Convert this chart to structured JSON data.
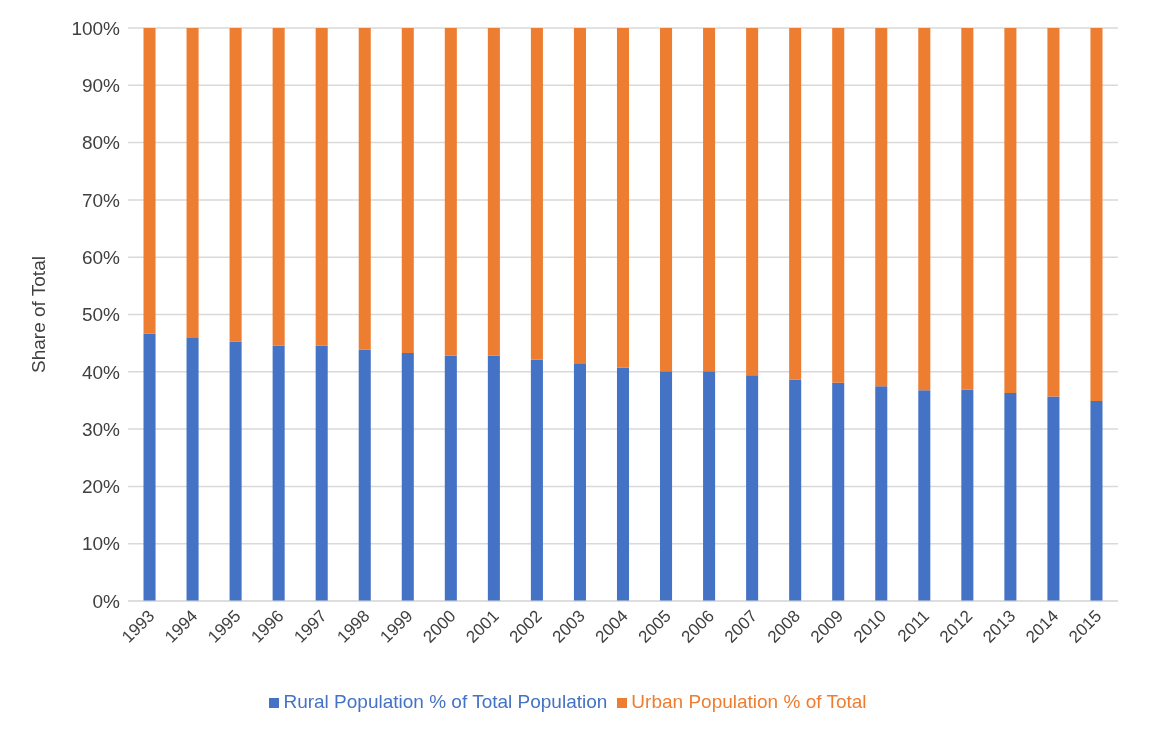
{
  "chart_data": {
    "type": "bar",
    "stacked": true,
    "ylabel": "Share of Total",
    "categories": [
      "1993",
      "1994",
      "1995",
      "1996",
      "1997",
      "1998",
      "1999",
      "2000",
      "2001",
      "2002",
      "2003",
      "2004",
      "2005",
      "2006",
      "2007",
      "2008",
      "2009",
      "2010",
      "2011",
      "2012",
      "2013",
      "2014",
      "2015"
    ],
    "series": [
      {
        "name": "Rural Population % of Total Population",
        "color": "#4472c4",
        "values": [
          46.7,
          45.9,
          45.3,
          44.6,
          44.6,
          43.9,
          43.3,
          42.8,
          42.8,
          42.1,
          41.5,
          40.7,
          40.1,
          40.1,
          39.4,
          38.6,
          38.1,
          37.5,
          36.8,
          36.9,
          36.3,
          35.7,
          34.9
        ]
      },
      {
        "name": "Urban Population % of Total",
        "color": "#ed7d31",
        "values": [
          53.3,
          54.1,
          54.7,
          55.4,
          55.4,
          56.1,
          56.7,
          57.2,
          57.2,
          57.9,
          58.5,
          59.3,
          59.9,
          59.9,
          60.6,
          61.4,
          61.9,
          62.5,
          63.2,
          63.1,
          63.7,
          64.3,
          65.1
        ]
      }
    ],
    "ylim": [
      0,
      100
    ],
    "yticks": [
      {
        "value": 0,
        "label": "0%"
      },
      {
        "value": 10,
        "label": "10%"
      },
      {
        "value": 20,
        "label": "20%"
      },
      {
        "value": 30,
        "label": "30%"
      },
      {
        "value": 40,
        "label": "40%"
      },
      {
        "value": 50,
        "label": "50%"
      },
      {
        "value": 60,
        "label": "60%"
      },
      {
        "value": 70,
        "label": "70%"
      },
      {
        "value": 80,
        "label": "80%"
      },
      {
        "value": 90,
        "label": "90%"
      },
      {
        "value": 100,
        "label": "100%"
      }
    ],
    "grid": "y",
    "legend": "bottom"
  }
}
